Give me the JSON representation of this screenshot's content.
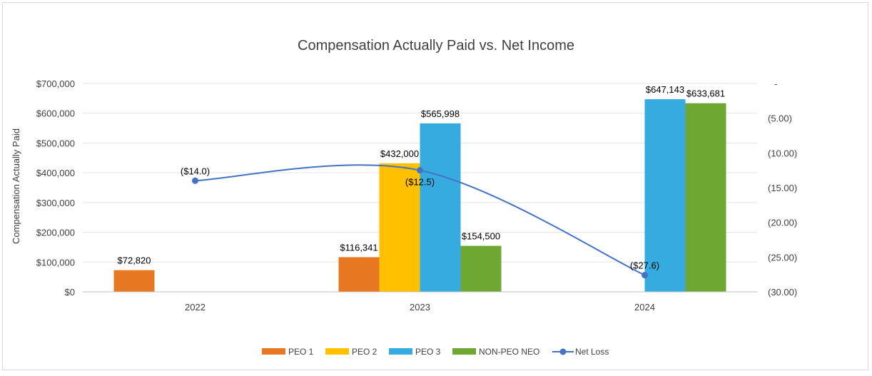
{
  "chart_data": {
    "type": "bar",
    "title": "Compensation Actually Paid vs. Net Income",
    "categories": [
      "2022",
      "2023",
      "2024"
    ],
    "ylabel": "Compensation Actually Paid",
    "ylim": [
      0,
      700000
    ],
    "y_ticks": [
      "$0",
      "$100,000",
      "$200,000",
      "$300,000",
      "$400,000",
      "$500,000",
      "$600,000",
      "$700,000"
    ],
    "y2lim": [
      -30,
      0
    ],
    "y2_ticks": [
      "-",
      "(5.00)",
      "(10.00)",
      "(15.00)",
      "(20.00)",
      "(25.00)",
      "(30.00)"
    ],
    "grid": true,
    "legend_position": "bottom",
    "series": [
      {
        "name": "PEO 1",
        "color": "#E87722",
        "values": [
          72820,
          116341,
          null
        ],
        "labels": [
          "$72,820",
          "$116,341",
          ""
        ]
      },
      {
        "name": "PEO 2",
        "color": "#FFC000",
        "values": [
          null,
          432000,
          null
        ],
        "labels": [
          "",
          "$432,000",
          ""
        ]
      },
      {
        "name": "PEO 3",
        "color": "#36ABE0",
        "values": [
          null,
          565998,
          647143
        ],
        "labels": [
          "",
          "$565,998",
          "$647,143"
        ]
      },
      {
        "name": "NON-PEO NEO",
        "color": "#6EA833",
        "values": [
          null,
          154500,
          633681
        ],
        "labels": [
          "",
          "$154,500",
          "$633,681"
        ]
      }
    ],
    "line_series": {
      "name": "Net Loss",
      "color": "#4472C4",
      "axis": "secondary",
      "values": [
        -14.0,
        -12.5,
        -27.6
      ],
      "labels": [
        "($14.0)",
        "($12.5)",
        "($27.6)"
      ]
    }
  }
}
